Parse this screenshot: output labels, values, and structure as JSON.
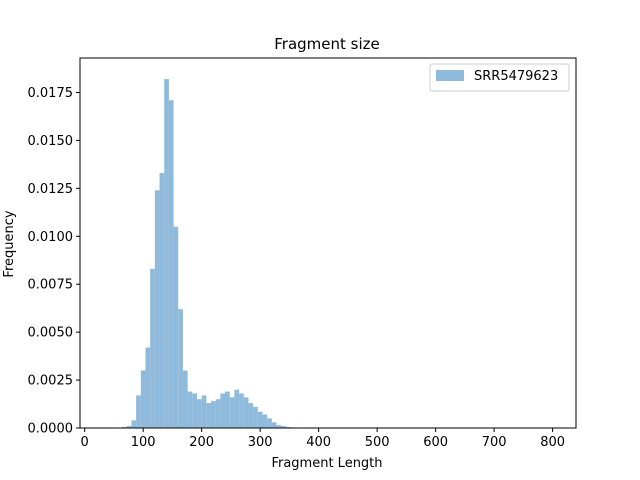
{
  "chart_data": {
    "type": "bar",
    "title": "Fragment size",
    "xlabel": "Fragment Length",
    "ylabel": "Frequency",
    "xlim": [
      -8,
      840
    ],
    "ylim": [
      0,
      0.0193
    ],
    "xticks": [
      0,
      100,
      200,
      300,
      400,
      500,
      600,
      700,
      800
    ],
    "yticks": [
      0.0,
      0.0025,
      0.005,
      0.0075,
      0.01,
      0.0125,
      0.015,
      0.0175
    ],
    "ytick_labels": [
      "0.0000",
      "0.0025",
      "0.0050",
      "0.0075",
      "0.0100",
      "0.0125",
      "0.0150",
      "0.0175"
    ],
    "grid": false,
    "legend_position": "top-right",
    "series": [
      {
        "name": "SRR5479623",
        "color": "#8fbadb",
        "bin_width": 8,
        "bin_starts": [
          64,
          72,
          80,
          88,
          96,
          104,
          112,
          120,
          128,
          136,
          144,
          152,
          160,
          168,
          176,
          184,
          192,
          200,
          208,
          216,
          224,
          232,
          240,
          248,
          256,
          264,
          272,
          280,
          288,
          296,
          304,
          312,
          320,
          328,
          336,
          344,
          352,
          360,
          368,
          376,
          384,
          392,
          400
        ],
        "values": [
          5e-05,
          0.0001,
          0.0004,
          0.0017,
          0.003,
          0.0042,
          0.0083,
          0.0124,
          0.0133,
          0.0182,
          0.0171,
          0.0105,
          0.0062,
          0.003,
          0.0019,
          0.0018,
          0.0015,
          0.0017,
          0.0013,
          0.0014,
          0.0015,
          0.0018,
          0.0019,
          0.0016,
          0.002,
          0.0018,
          0.0016,
          0.0013,
          0.0011,
          0.00085,
          0.0007,
          0.0005,
          0.0003,
          0.00015,
          0.0001,
          5e-05,
          3e-05,
          1e-05,
          1e-05,
          5e-06,
          5e-06,
          5e-06,
          5e-06
        ]
      }
    ]
  }
}
